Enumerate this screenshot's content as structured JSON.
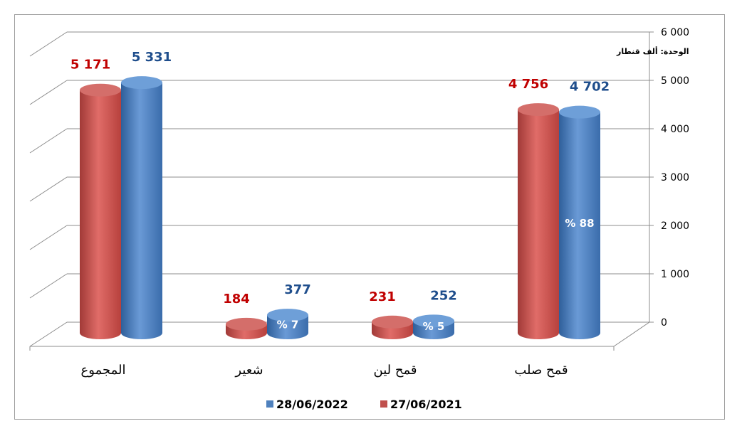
{
  "chart_data": {
    "type": "bar",
    "unit_label": "الوحدة: ألف قنطار",
    "categories": [
      "المجموع",
      "شعير",
      "قمح لين",
      "قمح صلب"
    ],
    "series": [
      {
        "name": "27/06/2021",
        "color": "#c0504d",
        "values": [
          5171,
          184,
          231,
          4756
        ],
        "labels": [
          "5 171",
          "184",
          "231",
          "4 756"
        ]
      },
      {
        "name": "28/06/2022",
        "color": "#4f81bd",
        "values": [
          5331,
          377,
          252,
          4702
        ],
        "labels": [
          "5 331",
          "377",
          "252",
          "4 702"
        ]
      }
    ],
    "shares_2022": [
      "",
      "% 7",
      "% 5",
      "% 88"
    ],
    "y_ticks": [
      {
        "value": 0,
        "label": "0"
      },
      {
        "value": 1000,
        "label": "1 000"
      },
      {
        "value": 2000,
        "label": "2 000"
      },
      {
        "value": 3000,
        "label": "3 000"
      },
      {
        "value": 4000,
        "label": "4 000"
      },
      {
        "value": 5000,
        "label": "5 000"
      },
      {
        "value": 6000,
        "label": "6 000"
      }
    ],
    "ylim": [
      0,
      6000
    ],
    "axis_side": "right",
    "grid": true,
    "legend_position": "bottom"
  }
}
